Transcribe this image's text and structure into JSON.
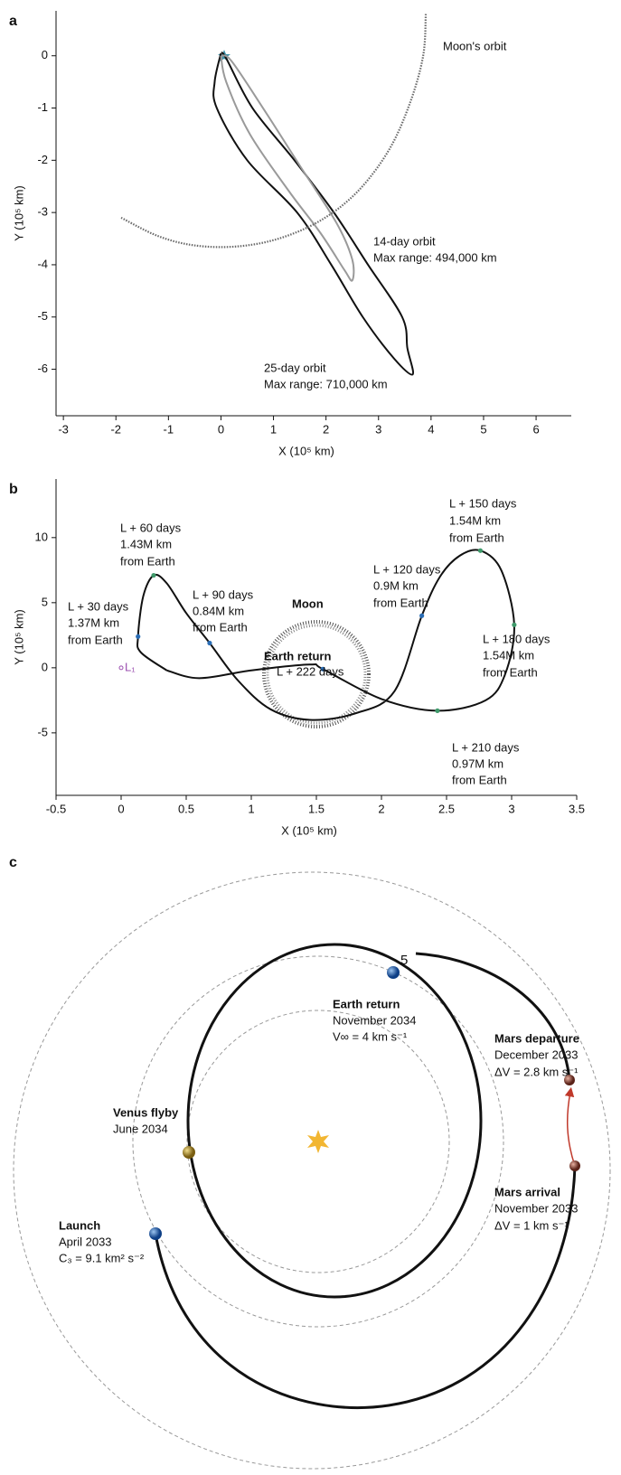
{
  "chart_data": [
    {
      "type": "line",
      "panel_label": "a",
      "xlabel": "X (10⁵ km)",
      "ylabel": "Y (10⁵ km)",
      "xlim": [
        -3.14,
        6.67
      ],
      "ylim": [
        -6.89,
        0.86
      ],
      "xticks": [
        -3,
        -2,
        -1,
        0,
        1,
        2,
        3,
        4,
        5,
        6
      ],
      "yticks": [
        -6,
        -5,
        -4,
        -3,
        -2,
        -1,
        0
      ],
      "series": [
        {
          "color": "#111111",
          "x": [
            0,
            -0.12,
            -0.08,
            0.5,
            1.45,
            2.1,
            2.7,
            3.3,
            3.65,
            3.55,
            3.45,
            2.8,
            2.15,
            1.4,
            0.6,
            0.1,
            0
          ],
          "values": [
            0.05,
            -0.5,
            -1,
            -2,
            -3,
            -4,
            -5,
            -5.8,
            -6.1,
            -5.6,
            -5,
            -4,
            -3,
            -2,
            -1,
            -0.05,
            0.05
          ]
        },
        {
          "color": "#9a9a9a",
          "x": [
            0,
            0.1,
            0.55,
            1.3,
            1.9,
            2.35,
            2.5,
            2.5,
            2.2,
            1.5,
            0.8,
            0.2,
            0
          ],
          "values": [
            0,
            -0.5,
            -1.5,
            -2.6,
            -3.4,
            -4.1,
            -4.3,
            -3.9,
            -3.2,
            -2.1,
            -1,
            -0.1,
            0
          ]
        },
        {
          "color": "#6a6a6a",
          "dashed": true,
          "x": [
            -1.9,
            -1.2,
            -0.5,
            0.3,
            1.1,
            1.9,
            2.6,
            3.2,
            3.6,
            3.85,
            3.9
          ],
          "values": [
            -3.1,
            -3.45,
            -3.63,
            -3.65,
            -3.5,
            -3.15,
            -2.6,
            -1.8,
            -0.9,
            0,
            0.8
          ]
        }
      ],
      "annotations": [
        "Moon's orbit",
        "14-day orbit",
        "Max range: 494,000 km",
        "25-day orbit",
        "Max range: 710,000 km"
      ]
    },
    {
      "type": "line",
      "panel_label": "b",
      "xlabel": "X (10⁵ km)",
      "ylabel": "Y (10⁵ km)",
      "xlim": [
        -0.5,
        3.5
      ],
      "ylim": [
        -9.8,
        14.5
      ],
      "xticks": [
        -0.5,
        0,
        0.5,
        1,
        1.5,
        2,
        2.5,
        3,
        3.5
      ],
      "yticks": [
        -5,
        0,
        5,
        10
      ],
      "series": [
        {
          "color": "#111111",
          "x": [
            0.35,
            0.15,
            0.13,
            0.17,
            0.25,
            0.35,
            0.5,
            0.68,
            0.9,
            1.15,
            1.45,
            1.8,
            2.1,
            2.31,
            2.45,
            2.6,
            2.76,
            2.92,
            3.02,
            2.95,
            2.8,
            2.43,
            2.0,
            1.55,
            1.45,
            1.0,
            0.6,
            0.35
          ],
          "values": [
            -0.2,
            1.2,
            2.4,
            5.5,
            7.1,
            6.5,
            4.2,
            1.9,
            -1,
            -3.2,
            -4,
            -3.5,
            -1.8,
            4,
            7,
            8.6,
            9,
            7.5,
            3.3,
            -0.5,
            -2.5,
            -3.3,
            -2.4,
            -0.1,
            0.25,
            -0.2,
            -0.8,
            -0.2
          ]
        },
        {
          "marker": true,
          "colors": [
            "#2a6db5",
            "#3f9a6b",
            "#2a6db5",
            "#2a6db5",
            "#3f9a6b",
            "#3f9a6b",
            "#3f9a6b",
            "#2a6db5"
          ],
          "x": [
            0.13,
            0.25,
            0.68,
            2.31,
            2.76,
            3.02,
            2.43,
            1.55
          ],
          "values": [
            2.4,
            7.1,
            1.9,
            4,
            9,
            3.3,
            -3.3,
            -0.1
          ]
        }
      ],
      "annotations": [
        "L + 60 days",
        "1.43M km",
        "from Earth",
        "L + 30 days",
        "1.37M km",
        "from Earth",
        "L + 90 days",
        "0.84M km",
        "from Earth",
        "Moon",
        "Earth return",
        "L + 222 days",
        "L + 120 days",
        "0.9M km",
        "from Earth",
        "L + 150 days",
        "1.54M km",
        "from Earth",
        "L + 180 days",
        "1.54M km",
        "from Earth",
        "L + 210 days",
        "0.97M km",
        "from Earth",
        "L₁"
      ]
    }
  ],
  "diagram": {
    "panel_label": "c",
    "labels": [
      "5",
      "Earth return",
      "November 2034",
      "V∞ = 4 km s⁻¹",
      "Mars departure",
      "December 2033",
      "ΔV = 2.8 km s⁻¹",
      "Venus flyby",
      "June 2034",
      "Mars arrival",
      "November 2033",
      "ΔV = 1 km s⁻¹",
      "Launch",
      "April 2033",
      "C₃ = 9.1 km² s⁻²"
    ]
  }
}
